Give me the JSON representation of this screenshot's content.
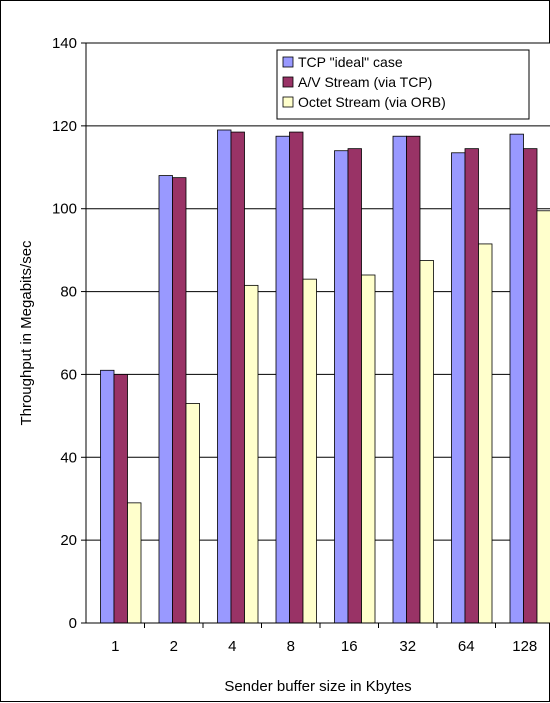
{
  "chart_data": {
    "type": "bar",
    "title": "",
    "xlabel": "Sender buffer size in Kbytes",
    "ylabel": "Throughput in Megabits/sec",
    "ylim": [
      0,
      140
    ],
    "yticks": [
      0,
      20,
      40,
      60,
      80,
      100,
      120,
      140
    ],
    "grid": "horizontal",
    "legend_position": "top-right",
    "categories": [
      "1",
      "2",
      "4",
      "8",
      "16",
      "32",
      "64",
      "128"
    ],
    "series": [
      {
        "name": "TCP \"ideal\" case",
        "color": "#9999ff",
        "values": [
          61,
          108,
          119,
          117.5,
          114,
          117.5,
          113.5,
          118
        ]
      },
      {
        "name": "A/V Stream (via TCP)",
        "color": "#993366",
        "values": [
          60,
          107.5,
          118.5,
          118.5,
          114.5,
          117.5,
          114.5,
          114.5
        ]
      },
      {
        "name": "Octet Stream (via ORB)",
        "color": "#ffffcc",
        "values": [
          29,
          53,
          81.5,
          83,
          84,
          87.5,
          91.5,
          99.5
        ]
      }
    ]
  }
}
